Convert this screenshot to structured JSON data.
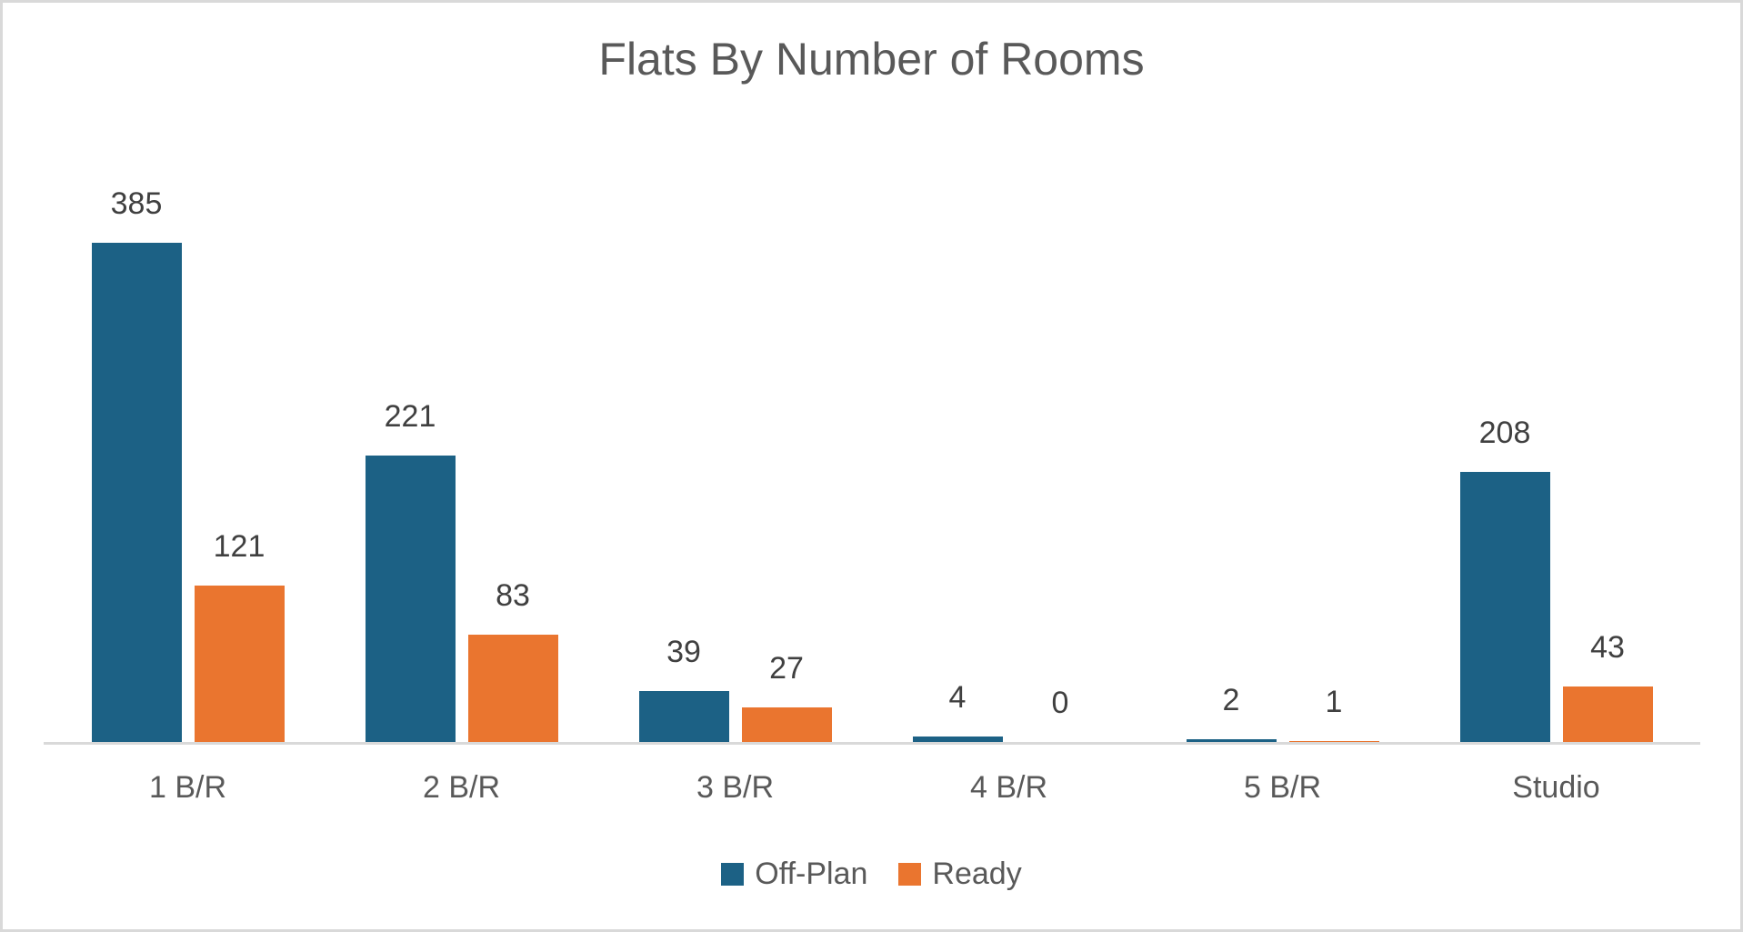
{
  "title": "Flats By Number of Rooms",
  "chart_data": {
    "type": "bar",
    "title": "Flats By Number of Rooms",
    "categories": [
      "1 B/R",
      "2 B/R",
      "3 B/R",
      "4 B/R",
      "5 B/R",
      "Studio"
    ],
    "series": [
      {
        "name": "Off-Plan",
        "color": "#1C6185",
        "values": [
          385,
          221,
          39,
          4,
          2,
          208
        ]
      },
      {
        "name": "Ready",
        "color": "#EA752F",
        "values": [
          121,
          83,
          27,
          0,
          1,
          43
        ]
      }
    ],
    "xlabel": "",
    "ylabel": "",
    "ylim": [
      0,
      385
    ],
    "grid": false,
    "y_axis_visible": false,
    "data_labels": true,
    "legend_position": "bottom"
  },
  "colors": {
    "background": "#FFFFFF",
    "border": "#D9D9D9",
    "axis_line": "#D9D9D9",
    "title_text": "#595959",
    "data_label_text": "#404040",
    "category_label_text": "#595959",
    "legend_text": "#595959",
    "series_off_plan": "#1C6185",
    "series_ready": "#EA752F"
  }
}
